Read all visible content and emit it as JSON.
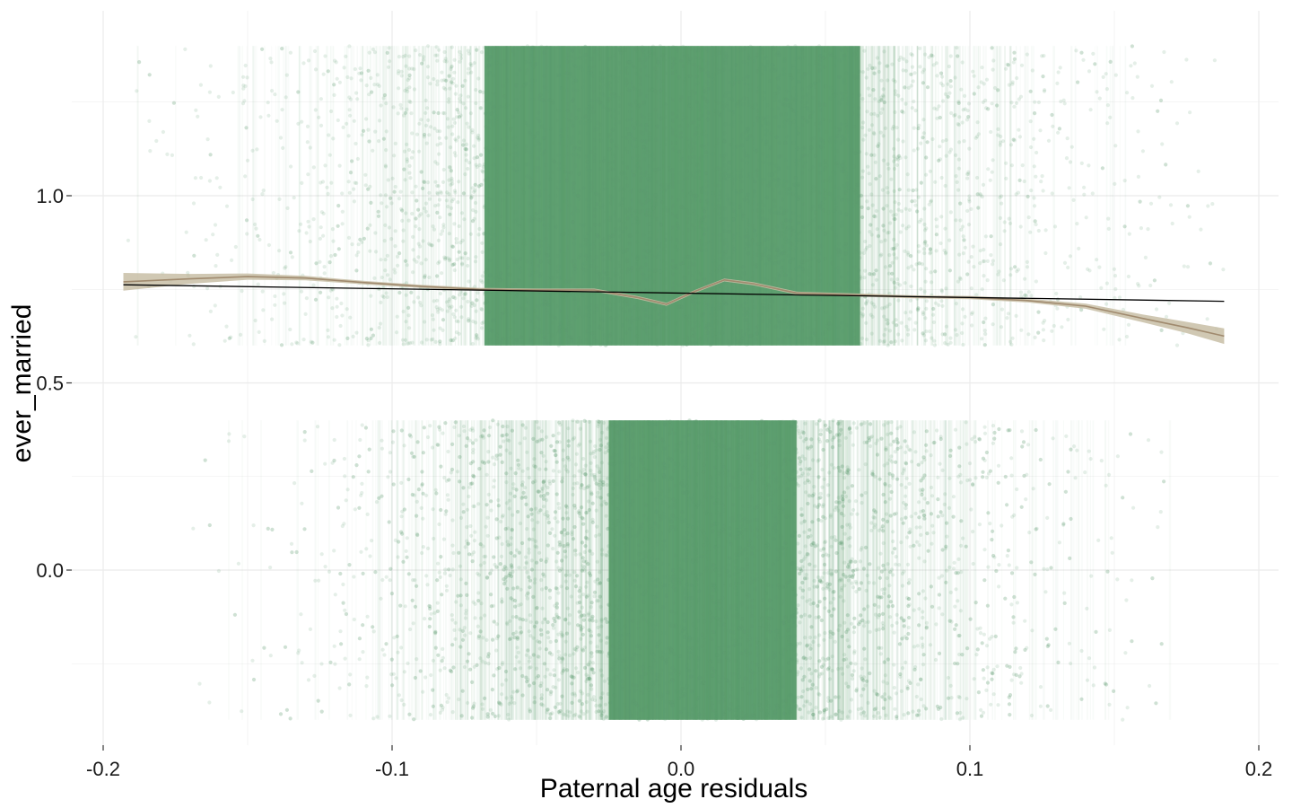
{
  "chart_data": {
    "type": "scatter",
    "title": "",
    "xlabel": "Paternal age residuals",
    "ylabel": "ever_married",
    "xlim": [
      -0.2,
      0.2
    ],
    "ylim": [
      -0.45,
      1.45
    ],
    "x_ticks": [
      -0.2,
      -0.1,
      0.0,
      0.1,
      0.2
    ],
    "x_tick_labels": [
      "-0.2",
      "-0.1",
      "0.0",
      "0.1",
      "0.2"
    ],
    "y_ticks": [
      0.0,
      0.5,
      1.0
    ],
    "y_tick_labels": [
      "0.0",
      "0.5",
      "1.0"
    ],
    "grid": true,
    "legend": "none",
    "colors": {
      "points": "#5c9e6e",
      "smooth_line": "#a08a6e",
      "smooth_band": "#c8bea6",
      "linear_fit": "#000000",
      "grid": "#ebebeb"
    },
    "jitter_groups": [
      {
        "value": 1,
        "y_range": [
          0.6,
          1.4
        ],
        "x_range": [
          -0.193,
          0.188
        ],
        "dense_x_range": [
          -0.068,
          0.062
        ]
      },
      {
        "value": 0,
        "y_range": [
          -0.4,
          0.4
        ],
        "x_range": [
          -0.193,
          0.17
        ],
        "dense_x_range": [
          -0.025,
          0.04
        ]
      }
    ],
    "series": [
      {
        "type": "line",
        "x": [
          -0.193,
          -0.17,
          -0.15,
          -0.13,
          -0.11,
          -0.09,
          -0.07,
          -0.05,
          -0.03,
          -0.015,
          -0.005,
          0.005,
          0.015,
          0.025,
          0.04,
          0.06,
          0.08,
          0.1,
          0.12,
          0.14,
          0.16,
          0.175,
          0.188
        ],
        "y": [
          0.77,
          0.778,
          0.784,
          0.78,
          0.768,
          0.758,
          0.75,
          0.748,
          0.748,
          0.728,
          0.71,
          0.745,
          0.775,
          0.765,
          0.74,
          0.735,
          0.73,
          0.728,
          0.72,
          0.705,
          0.672,
          0.648,
          0.625
        ]
      },
      {
        "type": "line",
        "x": [
          -0.193,
          0.188
        ],
        "y": [
          0.762,
          0.718
        ]
      }
    ]
  }
}
